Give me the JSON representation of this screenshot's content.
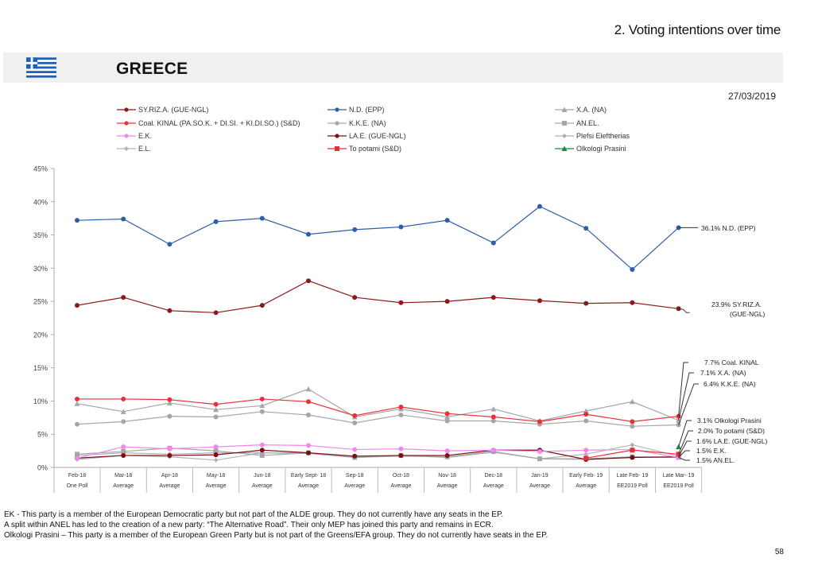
{
  "header": {
    "section_title": "2. Voting intentions over time",
    "country": "GREECE",
    "flag_icon": "greece-flag-icon",
    "date": "27/03/2019"
  },
  "colors": {
    "banner_bg": "#f0f0f0",
    "flag_blue": "#1f5fb8"
  },
  "chart_data": {
    "type": "line",
    "title": "",
    "xlabel": "",
    "ylabel": "",
    "ylim": [
      0,
      45
    ],
    "yticks": [
      "0%",
      "5%",
      "10%",
      "15%",
      "20%",
      "25%",
      "30%",
      "35%",
      "40%",
      "45%"
    ],
    "grid": false,
    "legend_position": "top",
    "categories": [
      {
        "line1": "Feb-18",
        "line2": "One Poll"
      },
      {
        "line1": "Mar-18",
        "line2": "Average"
      },
      {
        "line1": "Apr-18",
        "line2": "Average"
      },
      {
        "line1": "May-18",
        "line2": "Average"
      },
      {
        "line1": "Jun-18",
        "line2": "Average"
      },
      {
        "line1": "Early Sept- 18",
        "line2": "Average"
      },
      {
        "line1": "Sep-18",
        "line2": "Average"
      },
      {
        "line1": "Oct-18",
        "line2": "Average"
      },
      {
        "line1": "Nov-18",
        "line2": "Average"
      },
      {
        "line1": "Dec-18",
        "line2": "Average"
      },
      {
        "line1": "Jan-19",
        "line2": "Average"
      },
      {
        "line1": "Early Feb- 19",
        "line2": "Average"
      },
      {
        "line1": "Late Feb- 19",
        "line2": "EE2019 Poll"
      },
      {
        "line1": "Late Mar- 19",
        "line2": "EE2019 Poll"
      }
    ],
    "series": [
      {
        "name": "SY.RIZ.A. (GUE-NGL)",
        "color": "#8b1a1a",
        "marker": "circle",
        "values": [
          24.4,
          25.6,
          23.6,
          23.3,
          24.4,
          28.1,
          25.6,
          24.8,
          25.0,
          25.6,
          25.1,
          24.7,
          24.8,
          23.9
        ]
      },
      {
        "name": "N.D. (EPP)",
        "color": "#2e5ea8",
        "marker": "circle",
        "values": [
          37.2,
          37.4,
          33.6,
          37.0,
          37.5,
          35.1,
          35.8,
          36.2,
          37.2,
          33.8,
          39.3,
          36.0,
          29.8,
          36.1
        ]
      },
      {
        "name": "X.A. (NA)",
        "color": "#a6a6a6",
        "marker": "triangle",
        "values": [
          9.6,
          8.4,
          9.7,
          8.7,
          9.3,
          11.8,
          7.6,
          8.8,
          7.6,
          8.8,
          7.0,
          8.5,
          9.9,
          7.1
        ]
      },
      {
        "name": "Coal. KINAL (PA.SO.K. + DI.SI. + KI.DI.SO.) (S&D)",
        "color": "#e8303a",
        "marker": "circle",
        "values": [
          10.3,
          10.3,
          10.2,
          9.5,
          10.3,
          9.9,
          7.8,
          9.1,
          8.1,
          7.6,
          6.9,
          8.0,
          6.9,
          7.7
        ]
      },
      {
        "name": "K.K.E. (NA)",
        "color": "#a6a6a6",
        "marker": "circle",
        "values": [
          6.5,
          6.9,
          7.7,
          7.6,
          8.4,
          7.9,
          6.7,
          7.9,
          7.0,
          7.0,
          6.5,
          7.0,
          6.2,
          6.4
        ]
      },
      {
        "name": "AN.EL.",
        "color": "#a6a6a6",
        "marker": "square",
        "values": [
          2.0,
          2.4,
          2.9,
          2.5,
          1.8,
          2.2,
          1.5,
          1.8,
          1.6,
          2.4,
          1.3,
          1.3,
          1.6,
          1.5
        ]
      },
      {
        "name": "E.K.",
        "color": "#ee88ee",
        "marker": "circle",
        "values": [
          1.4,
          3.1,
          2.8,
          3.1,
          3.4,
          3.3,
          2.7,
          2.8,
          2.5,
          2.6,
          2.4,
          2.6,
          2.7,
          1.5
        ]
      },
      {
        "name": "LA.E. (GUE-NGL)",
        "color": "#7a0f18",
        "marker": "circle",
        "values": [
          1.4,
          1.8,
          1.8,
          1.9,
          2.6,
          2.2,
          1.7,
          1.8,
          1.8,
          2.6,
          2.6,
          1.2,
          1.5,
          1.6
        ]
      },
      {
        "name": "Plefsi Eleftherias",
        "color": "#b0b0b0",
        "marker": "diamond",
        "values": [
          1.8,
          2.2,
          2.0,
          2.2,
          2.2,
          2.2,
          1.6,
          1.8,
          1.5,
          2.3,
          1.3,
          1.2,
          1.6,
          1.5
        ]
      },
      {
        "name": "E.L.",
        "color": "#b3b3b3",
        "marker": "diamond",
        "values": [
          1.2,
          1.8,
          1.6,
          1.1,
          2.2,
          2.1,
          1.5,
          1.7,
          1.6,
          2.3,
          1.3,
          2.0,
          3.4,
          1.7
        ]
      },
      {
        "name": "To potami (S&D)",
        "color": "#e8303a",
        "marker": "square",
        "values": [
          null,
          null,
          null,
          null,
          null,
          null,
          null,
          null,
          null,
          null,
          null,
          1.4,
          2.6,
          2.0
        ]
      },
      {
        "name": "Olkologi Prasini",
        "color": "#1a8a3a",
        "marker": "triangle",
        "values": [
          null,
          null,
          null,
          null,
          null,
          null,
          null,
          null,
          null,
          null,
          null,
          null,
          null,
          3.1
        ]
      }
    ],
    "legend": [
      {
        "label": "SY.RIZ.A. (GUE-NGL)",
        "series": 0
      },
      {
        "label": "N.D. (EPP)",
        "series": 1
      },
      {
        "label": "X.A. (NA)",
        "series": 2
      },
      {
        "label": "Coal. KINAL (PA.SO.K. + DI.SI. + KI.DI.SO.) (S&D)",
        "series": 3
      },
      {
        "label": "K.K.E. (NA)",
        "series": 4
      },
      {
        "label": "AN.EL.",
        "series": 5
      },
      {
        "label": "E.K.",
        "series": 6
      },
      {
        "label": "LA.E. (GUE-NGL)",
        "series": 7
      },
      {
        "label": "Plefsi Eleftherias",
        "series": 8
      },
      {
        "label": "E.L.",
        "series": 9
      },
      {
        "label": "To potami (S&D)",
        "series": 10
      },
      {
        "label": "Olkologi Prasini",
        "series": 11
      }
    ],
    "annotations": [
      {
        "text": "36.1% N.D. (EPP)",
        "series": 1
      },
      {
        "text": "23.9% SY.RIZ.A.",
        "text2": "(GUE-NGL)",
        "series": 0
      },
      {
        "text": "7.7% Coal. KINAL",
        "series": 3
      },
      {
        "text": "7.1% X.A. (NA)",
        "series": 2
      },
      {
        "text": "6.4% K.K.E. (NA)",
        "series": 4
      },
      {
        "text": "3.1% Olkologi Prasini",
        "series": 11
      },
      {
        "text": "2.0% To potami (S&D)",
        "series": 10
      },
      {
        "text": "1.6% LA.E. (GUE-NGL)",
        "series": 7
      },
      {
        "text": "1.5% E.K.",
        "series": 6
      },
      {
        "text": "1.5% AN.EL.",
        "series": 5
      }
    ]
  },
  "footnotes": [
    "EK - This party is a member of the European Democratic party but not part of the ALDE group. They do not currently have any seats in the EP.",
    "A split within ANEL has led to the creation of a new party: “The Alternative Road”. Their only MEP has joined this party and remains in ECR.",
    "Olkologi Prasini – This party is a member of the European Green Party but is not part of the Greens/EFA group. They do not currently have seats in the EP."
  ],
  "page_number": "58"
}
